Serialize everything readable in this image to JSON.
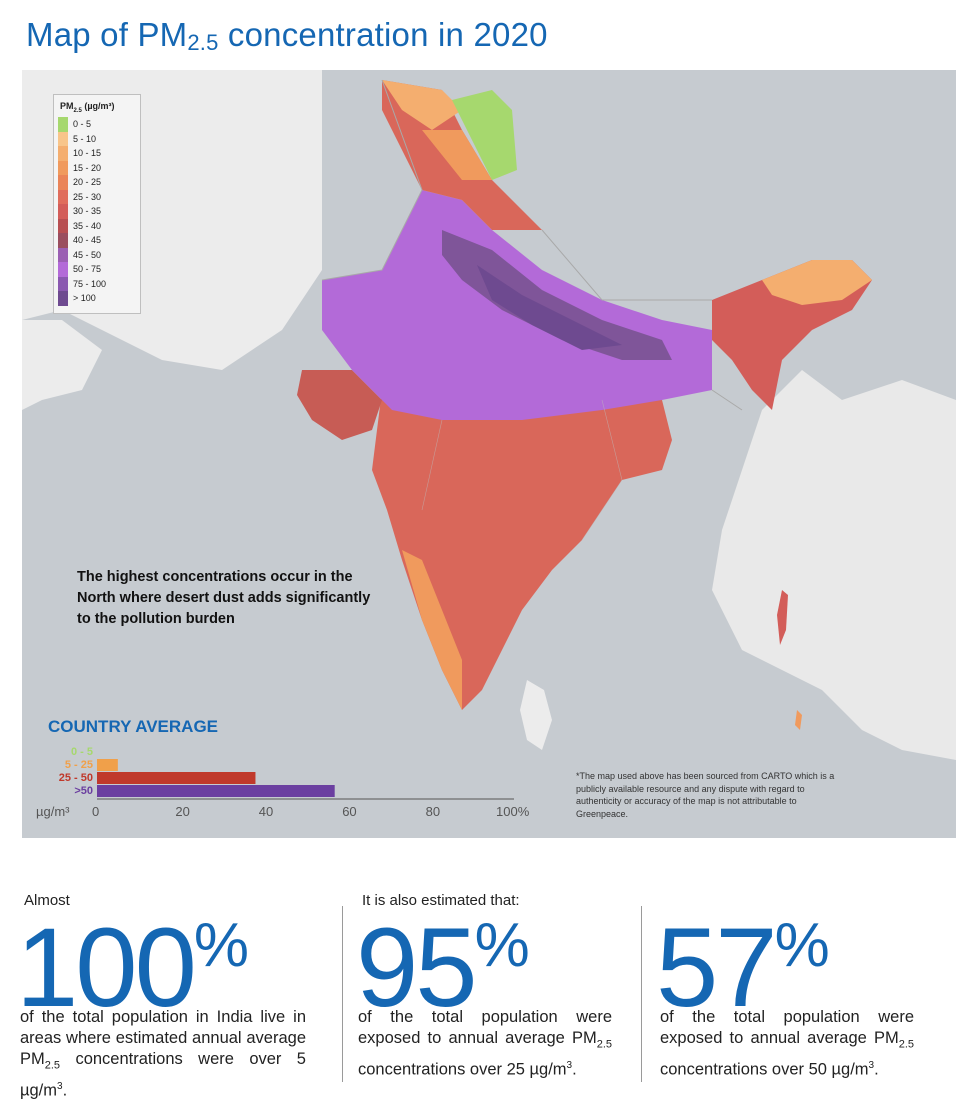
{
  "page": {
    "title_main": "Map of PM",
    "title_sub": "2.5",
    "title_rest": " concentration in 2020"
  },
  "legend": {
    "title": "PM",
    "title_sub": "2.5",
    "title_unit": " (µg/m³)",
    "items": [
      {
        "label": "0 - 5",
        "color": "#a6d86e"
      },
      {
        "label": "5 - 10",
        "color": "#f8c58a"
      },
      {
        "label": "10 - 15",
        "color": "#f4ae6f"
      },
      {
        "label": "15 - 20",
        "color": "#f09a5d"
      },
      {
        "label": "20 - 25",
        "color": "#ea8458"
      },
      {
        "label": "25 - 30",
        "color": "#e06d5c"
      },
      {
        "label": "30 - 35",
        "color": "#d35d59"
      },
      {
        "label": "35 - 40",
        "color": "#b84f52"
      },
      {
        "label": "40 - 45",
        "color": "#9a4e5f"
      },
      {
        "label": "45 - 50",
        "color": "#9b5fb3"
      },
      {
        "label": "50 - 75",
        "color": "#b36ad8"
      },
      {
        "label": "75 - 100",
        "color": "#8a58b0"
      },
      {
        "label": "> 100",
        "color": "#6e4a90"
      }
    ]
  },
  "map": {
    "callout": "The highest concentrations occur in the North where desert dust adds significantly to the pollution burden",
    "footnote": "*The map used above has been sourced from CARTO which is a publicly available resource and any dispute with regard to authenticity or accuracy of the map is not attributable to Greenpeace."
  },
  "chart_data": {
    "type": "bar",
    "title": "COUNTRY AVERAGE",
    "xlabel": "µg/m³",
    "categories": [
      "0 - 5",
      "5 - 25",
      "25 - 50",
      ">50"
    ],
    "values": [
      0,
      5,
      38,
      57
    ],
    "category_colors": [
      "#a6d86e",
      "#f0a04a",
      "#c0392b",
      "#6b3fa0"
    ],
    "xlim": [
      0,
      100
    ],
    "xticks": [
      "0",
      "20",
      "40",
      "60",
      "80",
      "100%"
    ],
    "orientation": "horizontal"
  },
  "stats": [
    {
      "intro": "Almost",
      "value": "100",
      "unit": "%",
      "desc_a": "of the total population in India live in areas where estimated annual average PM",
      "desc_sub": "2.5",
      "desc_b": " concentrations were over 5 µg/m",
      "desc_sup": "3",
      "desc_end": "."
    },
    {
      "intro": "It is also estimated that:",
      "value": "95",
      "unit": "%",
      "desc_a": "of the total population were exposed to annual average PM",
      "desc_sub": "2.5",
      "desc_b": " concentrations over 25 µg/m",
      "desc_sup": "3",
      "desc_end": "."
    },
    {
      "intro": "",
      "value": "57",
      "unit": "%",
      "desc_a": "of the total population were exposed to annual average PM",
      "desc_sub": "2.5",
      "desc_b": " concentrations over 50 µg/m",
      "desc_sup": "3",
      "desc_end": "."
    }
  ]
}
